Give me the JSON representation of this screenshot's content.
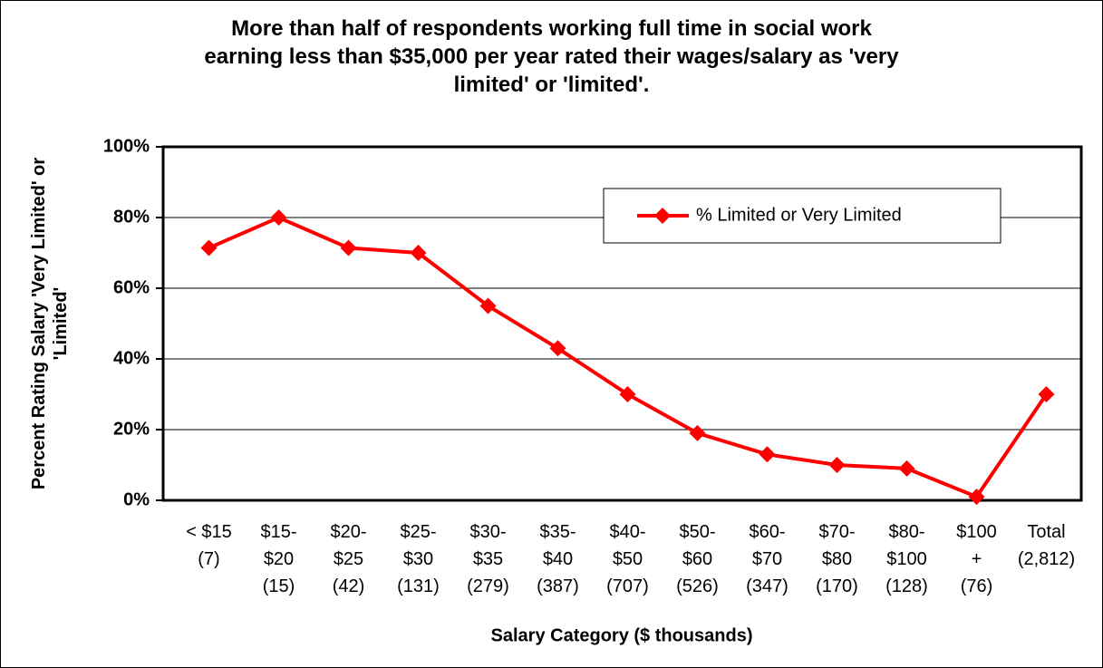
{
  "chart_data": {
    "type": "line",
    "title": "More than half of respondents working full time in social work\nearning less than $35,000 per year rated their wages/salary as 'very\nlimited' or 'limited'.",
    "ylabel": "Percent Rating Salary 'Very Limited' or\n'Limited'",
    "xlabel": "Salary Category ($ thousands)",
    "categories": [
      "< $15\n(7)",
      "$15-\n$20\n(15)",
      "$20-\n$25\n(42)",
      "$25-\n$30\n(131)",
      "$30-\n$35\n(279)",
      "$35-\n$40\n(387)",
      "$40-\n$50\n(707)",
      "$50-\n$60\n(526)",
      "$60-\n$70\n(347)",
      "$70-\n$80\n(170)",
      "$80-\n$100\n(128)",
      "$100\n+\n(76)",
      "Total\n(2,812)"
    ],
    "series": [
      {
        "name": "% Limited or Very Limited",
        "color": "#ff0000",
        "values": [
          71.4,
          80,
          71.4,
          70,
          55,
          43,
          30,
          19,
          13,
          10,
          9,
          1,
          30
        ]
      }
    ],
    "ylim": [
      0,
      100
    ],
    "yticks": [
      {
        "value": 0,
        "label": "0%"
      },
      {
        "value": 20,
        "label": "20%"
      },
      {
        "value": 40,
        "label": "40%"
      },
      {
        "value": 60,
        "label": "60%"
      },
      {
        "value": 80,
        "label": "80%"
      },
      {
        "value": 100,
        "label": "100%"
      }
    ],
    "grid": true,
    "legend": "upper right"
  }
}
